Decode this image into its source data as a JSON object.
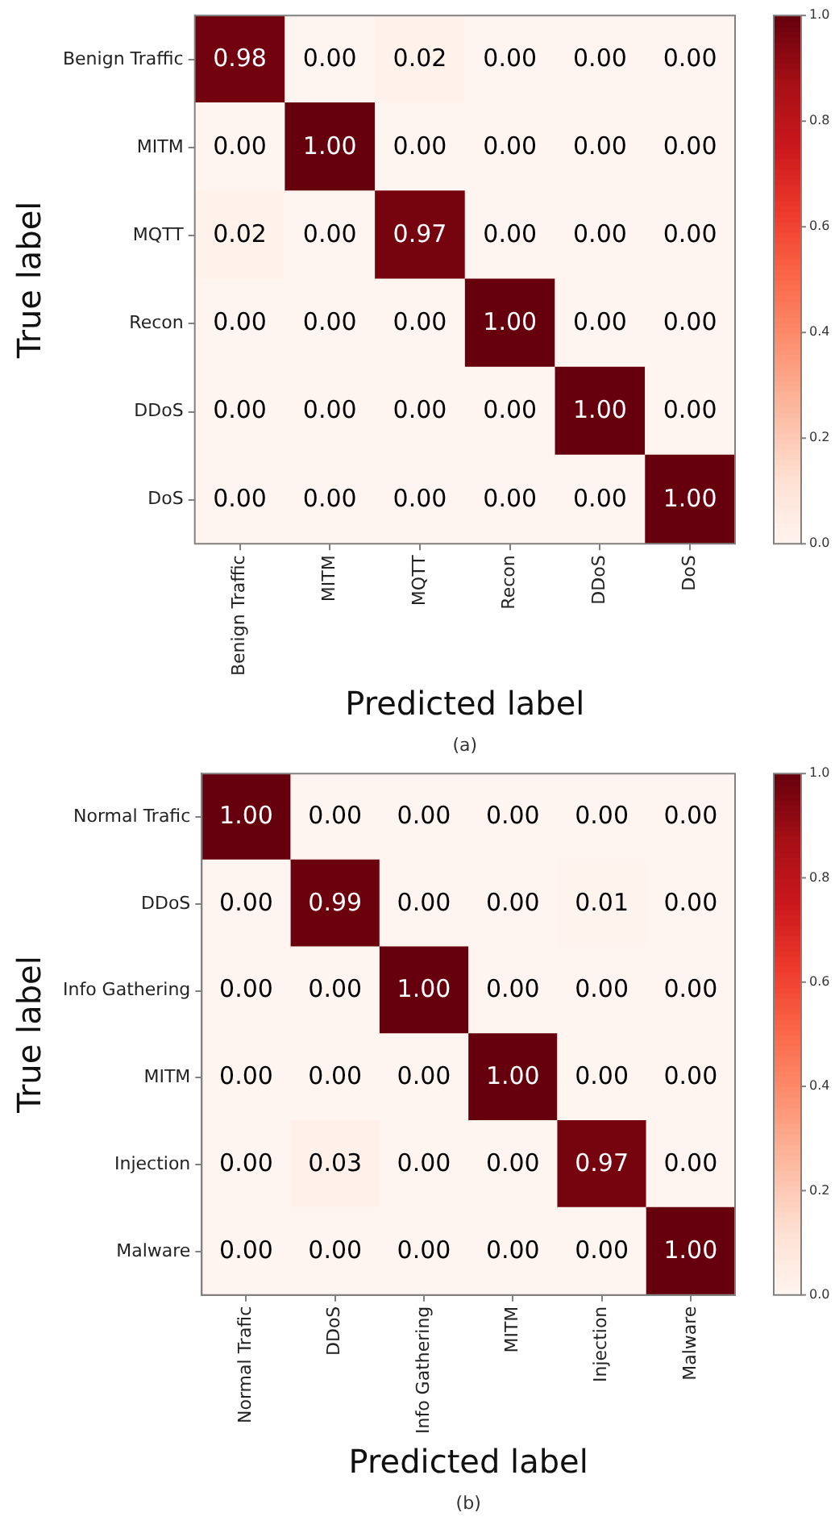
{
  "chart_data": [
    {
      "type": "heatmap",
      "xlabel": "Predicted label",
      "ylabel": "True label",
      "annotations": [
        "(a)"
      ],
      "categories": [
        "Benign Traffic",
        "MITM",
        "MQTT",
        "Recon",
        "DDoS",
        "DoS"
      ],
      "y_categories": [
        "Benign Traffic",
        "MITM",
        "MQTT",
        "Recon",
        "DDoS",
        "DoS"
      ],
      "cells": [
        [
          0.98,
          0,
          0.02,
          0,
          0,
          0
        ],
        [
          0,
          1,
          0,
          0,
          0,
          0
        ],
        [
          0.02,
          0,
          0.97,
          0,
          0,
          0
        ],
        [
          0,
          0,
          0,
          1,
          0,
          0
        ],
        [
          0,
          0,
          0,
          0,
          1,
          0
        ],
        [
          0,
          0,
          0,
          0,
          0,
          1
        ]
      ],
      "cell_labels": [
        [
          "0.98",
          "0.00",
          "0.02",
          "0.00",
          "0.00",
          "0.00"
        ],
        [
          "0.00",
          "1.00",
          "0.00",
          "0.00",
          "0.00",
          "0.00"
        ],
        [
          "0.02",
          "0.00",
          "0.97",
          "0.00",
          "0.00",
          "0.00"
        ],
        [
          "0.00",
          "0.00",
          "0.00",
          "1.00",
          "0.00",
          "0.00"
        ],
        [
          "0.00",
          "0.00",
          "0.00",
          "0.00",
          "1.00",
          "0.00"
        ],
        [
          "0.00",
          "0.00",
          "0.00",
          "0.00",
          "0.00",
          "1.00"
        ]
      ],
      "clim": [
        0,
        1
      ],
      "cticks": [
        {
          "value": 0,
          "label": "0.0"
        },
        {
          "value": 0.2,
          "label": "0.2"
        },
        {
          "value": 0.4,
          "label": "0.4"
        },
        {
          "value": 0.6,
          "label": "0.6"
        },
        {
          "value": 0.8,
          "label": "0.8"
        },
        {
          "value": 1,
          "label": "1.0"
        }
      ]
    },
    {
      "type": "heatmap",
      "xlabel": "Predicted label",
      "ylabel": "True label",
      "annotations": [
        "(b)"
      ],
      "categories": [
        "Normal Trafic",
        "DDoS",
        "Info Gathering",
        "MITM",
        "Injection",
        "Malware"
      ],
      "y_categories": [
        "Normal Trafic",
        "DDoS",
        "Info Gathering",
        "MITM",
        "Injection",
        "Malware"
      ],
      "cells": [
        [
          1,
          0,
          0,
          0,
          0,
          0
        ],
        [
          0,
          0.99,
          0,
          0,
          0.01,
          0
        ],
        [
          0,
          0,
          1,
          0,
          0,
          0
        ],
        [
          0,
          0,
          0,
          1,
          0,
          0
        ],
        [
          0,
          0.03,
          0,
          0,
          0.97,
          0
        ],
        [
          0,
          0,
          0,
          0,
          0,
          1
        ]
      ],
      "cell_labels": [
        [
          "1.00",
          "0.00",
          "0.00",
          "0.00",
          "0.00",
          "0.00"
        ],
        [
          "0.00",
          "0.99",
          "0.00",
          "0.00",
          "0.01",
          "0.00"
        ],
        [
          "0.00",
          "0.00",
          "1.00",
          "0.00",
          "0.00",
          "0.00"
        ],
        [
          "0.00",
          "0.00",
          "0.00",
          "1.00",
          "0.00",
          "0.00"
        ],
        [
          "0.00",
          "0.03",
          "0.00",
          "0.00",
          "0.97",
          "0.00"
        ],
        [
          "0.00",
          "0.00",
          "0.00",
          "0.00",
          "0.00",
          "1.00"
        ]
      ],
      "clim": [
        0,
        1
      ],
      "cticks": [
        {
          "value": 0,
          "label": "0.0"
        },
        {
          "value": 0.2,
          "label": "0.2"
        },
        {
          "value": 0.4,
          "label": "0.4"
        },
        {
          "value": 0.6,
          "label": "0.6"
        },
        {
          "value": 0.8,
          "label": "0.8"
        },
        {
          "value": 1,
          "label": "1.0"
        }
      ]
    }
  ]
}
